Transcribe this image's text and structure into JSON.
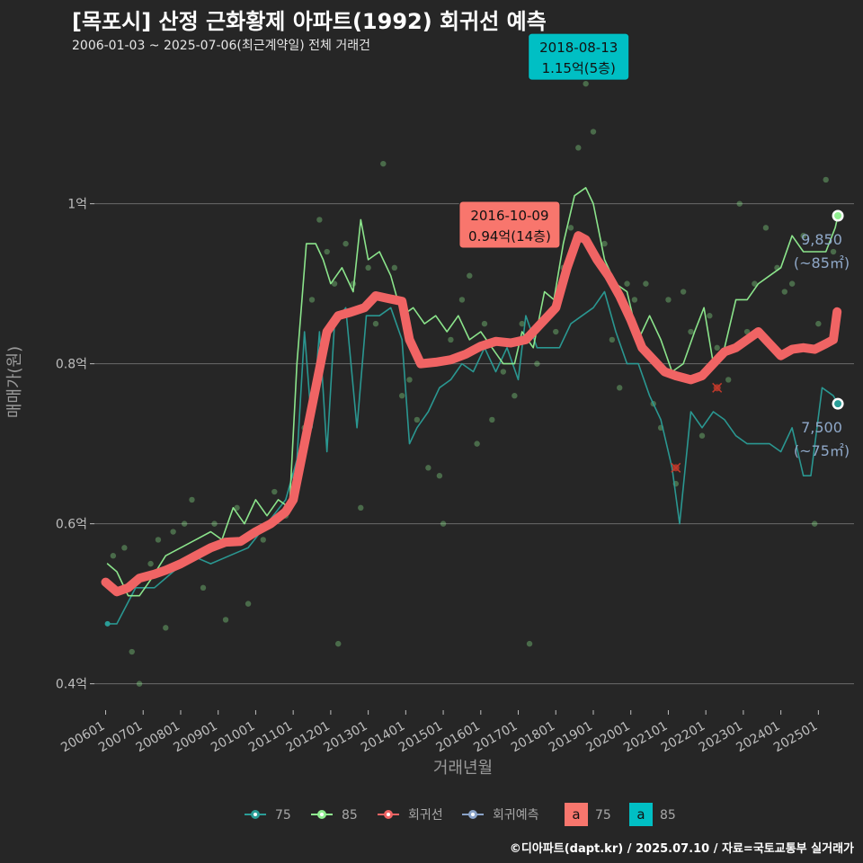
{
  "header": {
    "title": "[목포시] 산정 근화황제 아파트(1992) 회귀선 예측",
    "subtitle": "2006-01-03 ~ 2025-07-06(최근계약일) 전체 거래건"
  },
  "caption": "©디아파트(dapt.kr) / 2025.07.10 / 자료=국토교통부 실거래가",
  "chart_data": {
    "type": "line",
    "xlabel": "거래년월",
    "ylabel": "매매가(원)",
    "x_ticks": [
      "200601",
      "200701",
      "200801",
      "200901",
      "201001",
      "201101",
      "201201",
      "201301",
      "201401",
      "201501",
      "201601",
      "201701",
      "201801",
      "201901",
      "202001",
      "202101",
      "202201",
      "202301",
      "202401",
      "202501"
    ],
    "y_ticks": [
      {
        "value": 0.4,
        "label": "0.4억"
      },
      {
        "value": 0.6,
        "label": "0.6억"
      },
      {
        "value": 0.8,
        "label": "0.8억"
      },
      {
        "value": 1.0,
        "label": "1억"
      }
    ],
    "xlim": [
      2005.7,
      2025.95
    ],
    "ylim": [
      0.367,
      1.176
    ],
    "colors": {
      "s75": "#2a9d97",
      "s85": "#90ee90",
      "reg": "#f06464",
      "pred": "#8aa3c8",
      "ann75": "#f8766d",
      "ann85": "#00bfc4",
      "grid": "#6b6b6b"
    },
    "series": [
      {
        "name": "75",
        "values": [
          [
            2006.05,
            0.475
          ],
          [
            2006.3,
            0.475
          ],
          [
            2006.8,
            0.52
          ],
          [
            2007.3,
            0.52
          ],
          [
            2007.8,
            0.54
          ],
          [
            2008.3,
            0.56
          ],
          [
            2008.8,
            0.55
          ],
          [
            2009.3,
            0.56
          ],
          [
            2009.8,
            0.57
          ],
          [
            2010.3,
            0.6
          ],
          [
            2010.8,
            0.63
          ],
          [
            2011.1,
            0.68
          ],
          [
            2011.3,
            0.84
          ],
          [
            2011.5,
            0.72
          ],
          [
            2011.7,
            0.84
          ],
          [
            2011.9,
            0.69
          ],
          [
            2012.1,
            0.85
          ],
          [
            2012.4,
            0.87
          ],
          [
            2012.7,
            0.72
          ],
          [
            2012.95,
            0.86
          ],
          [
            2013.3,
            0.86
          ],
          [
            2013.6,
            0.87
          ],
          [
            2013.9,
            0.83
          ],
          [
            2014.1,
            0.7
          ],
          [
            2014.3,
            0.72
          ],
          [
            2014.6,
            0.74
          ],
          [
            2014.9,
            0.77
          ],
          [
            2015.2,
            0.78
          ],
          [
            2015.5,
            0.8
          ],
          [
            2015.8,
            0.79
          ],
          [
            2016.1,
            0.82
          ],
          [
            2016.4,
            0.79
          ],
          [
            2016.7,
            0.82
          ],
          [
            2017.0,
            0.78
          ],
          [
            2017.2,
            0.86
          ],
          [
            2017.5,
            0.82
          ],
          [
            2017.8,
            0.82
          ],
          [
            2018.1,
            0.82
          ],
          [
            2018.4,
            0.85
          ],
          [
            2018.7,
            0.86
          ],
          [
            2019.0,
            0.87
          ],
          [
            2019.3,
            0.89
          ],
          [
            2019.6,
            0.84
          ],
          [
            2019.9,
            0.8
          ],
          [
            2020.2,
            0.8
          ],
          [
            2020.5,
            0.76
          ],
          [
            2020.8,
            0.73
          ],
          [
            2021.1,
            0.67
          ],
          [
            2021.3,
            0.6
          ],
          [
            2021.6,
            0.74
          ],
          [
            2021.9,
            0.72
          ],
          [
            2022.2,
            0.74
          ],
          [
            2022.5,
            0.73
          ],
          [
            2022.8,
            0.71
          ],
          [
            2023.1,
            0.7
          ],
          [
            2023.4,
            0.7
          ],
          [
            2023.7,
            0.7
          ],
          [
            2024.0,
            0.69
          ],
          [
            2024.3,
            0.72
          ],
          [
            2024.6,
            0.66
          ],
          [
            2024.8,
            0.66
          ],
          [
            2025.1,
            0.77
          ],
          [
            2025.4,
            0.76
          ],
          [
            2025.52,
            0.75
          ]
        ]
      },
      {
        "name": "85",
        "values": [
          [
            2006.05,
            0.55
          ],
          [
            2006.3,
            0.54
          ],
          [
            2006.6,
            0.51
          ],
          [
            2006.9,
            0.51
          ],
          [
            2007.2,
            0.53
          ],
          [
            2007.6,
            0.56
          ],
          [
            2008.0,
            0.57
          ],
          [
            2008.4,
            0.58
          ],
          [
            2008.8,
            0.59
          ],
          [
            2009.1,
            0.58
          ],
          [
            2009.4,
            0.62
          ],
          [
            2009.7,
            0.6
          ],
          [
            2010.0,
            0.63
          ],
          [
            2010.3,
            0.61
          ],
          [
            2010.6,
            0.63
          ],
          [
            2010.9,
            0.62
          ],
          [
            2011.1,
            0.8
          ],
          [
            2011.35,
            0.95
          ],
          [
            2011.6,
            0.95
          ],
          [
            2011.8,
            0.93
          ],
          [
            2012.0,
            0.9
          ],
          [
            2012.3,
            0.92
          ],
          [
            2012.6,
            0.89
          ],
          [
            2012.8,
            0.98
          ],
          [
            2013.0,
            0.93
          ],
          [
            2013.3,
            0.94
          ],
          [
            2013.6,
            0.91
          ],
          [
            2013.9,
            0.86
          ],
          [
            2014.2,
            0.87
          ],
          [
            2014.5,
            0.85
          ],
          [
            2014.8,
            0.86
          ],
          [
            2015.1,
            0.84
          ],
          [
            2015.4,
            0.86
          ],
          [
            2015.7,
            0.83
          ],
          [
            2016.0,
            0.84
          ],
          [
            2016.3,
            0.82
          ],
          [
            2016.6,
            0.8
          ],
          [
            2016.9,
            0.8
          ],
          [
            2017.1,
            0.84
          ],
          [
            2017.4,
            0.82
          ],
          [
            2017.7,
            0.89
          ],
          [
            2017.95,
            0.88
          ],
          [
            2018.2,
            0.95
          ],
          [
            2018.5,
            1.01
          ],
          [
            2018.8,
            1.02
          ],
          [
            2019.0,
            1.0
          ],
          [
            2019.3,
            0.93
          ],
          [
            2019.6,
            0.9
          ],
          [
            2019.9,
            0.89
          ],
          [
            2020.2,
            0.83
          ],
          [
            2020.5,
            0.86
          ],
          [
            2020.8,
            0.83
          ],
          [
            2021.1,
            0.79
          ],
          [
            2021.4,
            0.8
          ],
          [
            2021.7,
            0.84
          ],
          [
            2021.95,
            0.87
          ],
          [
            2022.2,
            0.8
          ],
          [
            2022.5,
            0.82
          ],
          [
            2022.8,
            0.88
          ],
          [
            2023.1,
            0.88
          ],
          [
            2023.4,
            0.9
          ],
          [
            2023.7,
            0.91
          ],
          [
            2024.0,
            0.92
          ],
          [
            2024.3,
            0.96
          ],
          [
            2024.6,
            0.94
          ],
          [
            2024.9,
            0.94
          ],
          [
            2025.2,
            0.94
          ],
          [
            2025.45,
            0.97
          ],
          [
            2025.52,
            0.985
          ]
        ]
      },
      {
        "name": "회귀선",
        "values": [
          [
            2006.0,
            0.527
          ],
          [
            2006.3,
            0.515
          ],
          [
            2006.6,
            0.52
          ],
          [
            2006.9,
            0.532
          ],
          [
            2007.3,
            0.537
          ],
          [
            2007.6,
            0.542
          ],
          [
            2008.0,
            0.55
          ],
          [
            2008.4,
            0.56
          ],
          [
            2008.8,
            0.57
          ],
          [
            2009.2,
            0.577
          ],
          [
            2009.6,
            0.578
          ],
          [
            2010.0,
            0.59
          ],
          [
            2010.4,
            0.6
          ],
          [
            2010.8,
            0.615
          ],
          [
            2011.0,
            0.63
          ],
          [
            2011.3,
            0.7
          ],
          [
            2011.6,
            0.77
          ],
          [
            2011.9,
            0.84
          ],
          [
            2012.2,
            0.86
          ],
          [
            2012.5,
            0.864
          ],
          [
            2012.9,
            0.87
          ],
          [
            2013.2,
            0.885
          ],
          [
            2013.5,
            0.882
          ],
          [
            2013.9,
            0.878
          ],
          [
            2014.1,
            0.83
          ],
          [
            2014.4,
            0.8
          ],
          [
            2014.8,
            0.802
          ],
          [
            2015.2,
            0.805
          ],
          [
            2015.6,
            0.812
          ],
          [
            2016.0,
            0.822
          ],
          [
            2016.4,
            0.828
          ],
          [
            2016.8,
            0.826
          ],
          [
            2017.2,
            0.83
          ],
          [
            2017.6,
            0.85
          ],
          [
            2018.0,
            0.87
          ],
          [
            2018.3,
            0.92
          ],
          [
            2018.6,
            0.96
          ],
          [
            2018.8,
            0.955
          ],
          [
            2019.1,
            0.93
          ],
          [
            2019.4,
            0.91
          ],
          [
            2019.7,
            0.885
          ],
          [
            2020.0,
            0.855
          ],
          [
            2020.3,
            0.82
          ],
          [
            2020.6,
            0.805
          ],
          [
            2020.9,
            0.79
          ],
          [
            2021.2,
            0.785
          ],
          [
            2021.6,
            0.78
          ],
          [
            2021.9,
            0.785
          ],
          [
            2022.2,
            0.8
          ],
          [
            2022.5,
            0.815
          ],
          [
            2022.8,
            0.82
          ],
          [
            2023.1,
            0.83
          ],
          [
            2023.4,
            0.84
          ],
          [
            2023.7,
            0.825
          ],
          [
            2024.0,
            0.81
          ],
          [
            2024.3,
            0.818
          ],
          [
            2024.6,
            0.82
          ],
          [
            2024.9,
            0.818
          ],
          [
            2025.2,
            0.825
          ],
          [
            2025.4,
            0.83
          ],
          [
            2025.5,
            0.865
          ]
        ]
      }
    ],
    "scatter": [
      [
        2006.2,
        0.56
      ],
      [
        2006.5,
        0.57
      ],
      [
        2006.7,
        0.44
      ],
      [
        2006.9,
        0.4
      ],
      [
        2007.2,
        0.55
      ],
      [
        2007.4,
        0.58
      ],
      [
        2007.6,
        0.47
      ],
      [
        2007.8,
        0.59
      ],
      [
        2008.1,
        0.6
      ],
      [
        2008.3,
        0.63
      ],
      [
        2008.6,
        0.52
      ],
      [
        2008.9,
        0.6
      ],
      [
        2009.2,
        0.48
      ],
      [
        2009.5,
        0.62
      ],
      [
        2009.8,
        0.5
      ],
      [
        2010.2,
        0.58
      ],
      [
        2010.5,
        0.64
      ],
      [
        2010.8,
        0.61
      ],
      [
        2011.0,
        0.66
      ],
      [
        2011.3,
        0.72
      ],
      [
        2011.5,
        0.88
      ],
      [
        2011.7,
        0.98
      ],
      [
        2011.9,
        0.94
      ],
      [
        2012.1,
        0.9
      ],
      [
        2012.2,
        0.45
      ],
      [
        2012.4,
        0.95
      ],
      [
        2012.6,
        0.9
      ],
      [
        2012.8,
        0.62
      ],
      [
        2013.0,
        0.92
      ],
      [
        2013.2,
        0.85
      ],
      [
        2013.4,
        1.05
      ],
      [
        2013.7,
        0.92
      ],
      [
        2013.9,
        0.76
      ],
      [
        2014.1,
        0.78
      ],
      [
        2014.3,
        0.73
      ],
      [
        2014.6,
        0.67
      ],
      [
        2014.9,
        0.66
      ],
      [
        2015.0,
        0.6
      ],
      [
        2015.2,
        0.83
      ],
      [
        2015.5,
        0.88
      ],
      [
        2015.7,
        0.91
      ],
      [
        2015.9,
        0.7
      ],
      [
        2016.1,
        0.85
      ],
      [
        2016.3,
        0.73
      ],
      [
        2016.6,
        0.79
      ],
      [
        2016.9,
        0.76
      ],
      [
        2017.1,
        0.85
      ],
      [
        2017.3,
        0.45
      ],
      [
        2017.5,
        0.8
      ],
      [
        2017.8,
        0.95
      ],
      [
        2018.0,
        0.84
      ],
      [
        2018.2,
        0.92
      ],
      [
        2018.4,
        0.97
      ],
      [
        2018.6,
        1.07
      ],
      [
        2018.8,
        1.15
      ],
      [
        2019.0,
        1.09
      ],
      [
        2019.3,
        0.95
      ],
      [
        2019.5,
        0.83
      ],
      [
        2019.7,
        0.77
      ],
      [
        2019.9,
        0.9
      ],
      [
        2020.1,
        0.88
      ],
      [
        2020.4,
        0.9
      ],
      [
        2020.6,
        0.75
      ],
      [
        2020.8,
        0.72
      ],
      [
        2021.0,
        0.88
      ],
      [
        2021.2,
        0.65
      ],
      [
        2021.4,
        0.89
      ],
      [
        2021.6,
        0.84
      ],
      [
        2021.9,
        0.71
      ],
      [
        2022.1,
        0.86
      ],
      [
        2022.3,
        0.82
      ],
      [
        2022.6,
        0.78
      ],
      [
        2022.9,
        1.0
      ],
      [
        2023.1,
        0.84
      ],
      [
        2023.3,
        0.9
      ],
      [
        2023.6,
        0.97
      ],
      [
        2023.9,
        0.92
      ],
      [
        2024.1,
        0.89
      ],
      [
        2024.3,
        0.9
      ],
      [
        2024.6,
        0.96
      ],
      [
        2024.9,
        0.6
      ],
      [
        2025.0,
        0.85
      ],
      [
        2025.2,
        1.03
      ],
      [
        2025.4,
        0.94
      ]
    ],
    "x_markers": [
      [
        2021.2,
        0.67
      ],
      [
        2022.3,
        0.77
      ]
    ],
    "end_points": [
      {
        "series": "85",
        "x": 2025.52,
        "y": 0.985
      },
      {
        "series": "75",
        "x": 2025.52,
        "y": 0.75
      }
    ],
    "end_labels": [
      {
        "text": "9,850",
        "sub": "(~85㎡)",
        "y": 0.985
      },
      {
        "text": "7,500",
        "sub": "(~75㎡)",
        "y": 0.75
      }
    ],
    "annotations": [
      {
        "series": "75",
        "x": 2016.77,
        "y": 0.94,
        "line1": "2016-10-09",
        "line2": "0.94억(14층)"
      },
      {
        "series": "85",
        "x": 2018.61,
        "y": 1.15,
        "line1": "2018-08-13",
        "line2": "1.15억(5층)"
      }
    ],
    "legend": [
      {
        "key": "s75",
        "label": "75"
      },
      {
        "key": "s85",
        "label": "85"
      },
      {
        "key": "reg",
        "label": "회귀선"
      },
      {
        "key": "pred",
        "label": "회귀예측"
      }
    ],
    "legend_fill": [
      {
        "key": "ann75",
        "glyph": "a",
        "label": "75"
      },
      {
        "key": "ann85",
        "glyph": "a",
        "label": "85"
      }
    ]
  }
}
